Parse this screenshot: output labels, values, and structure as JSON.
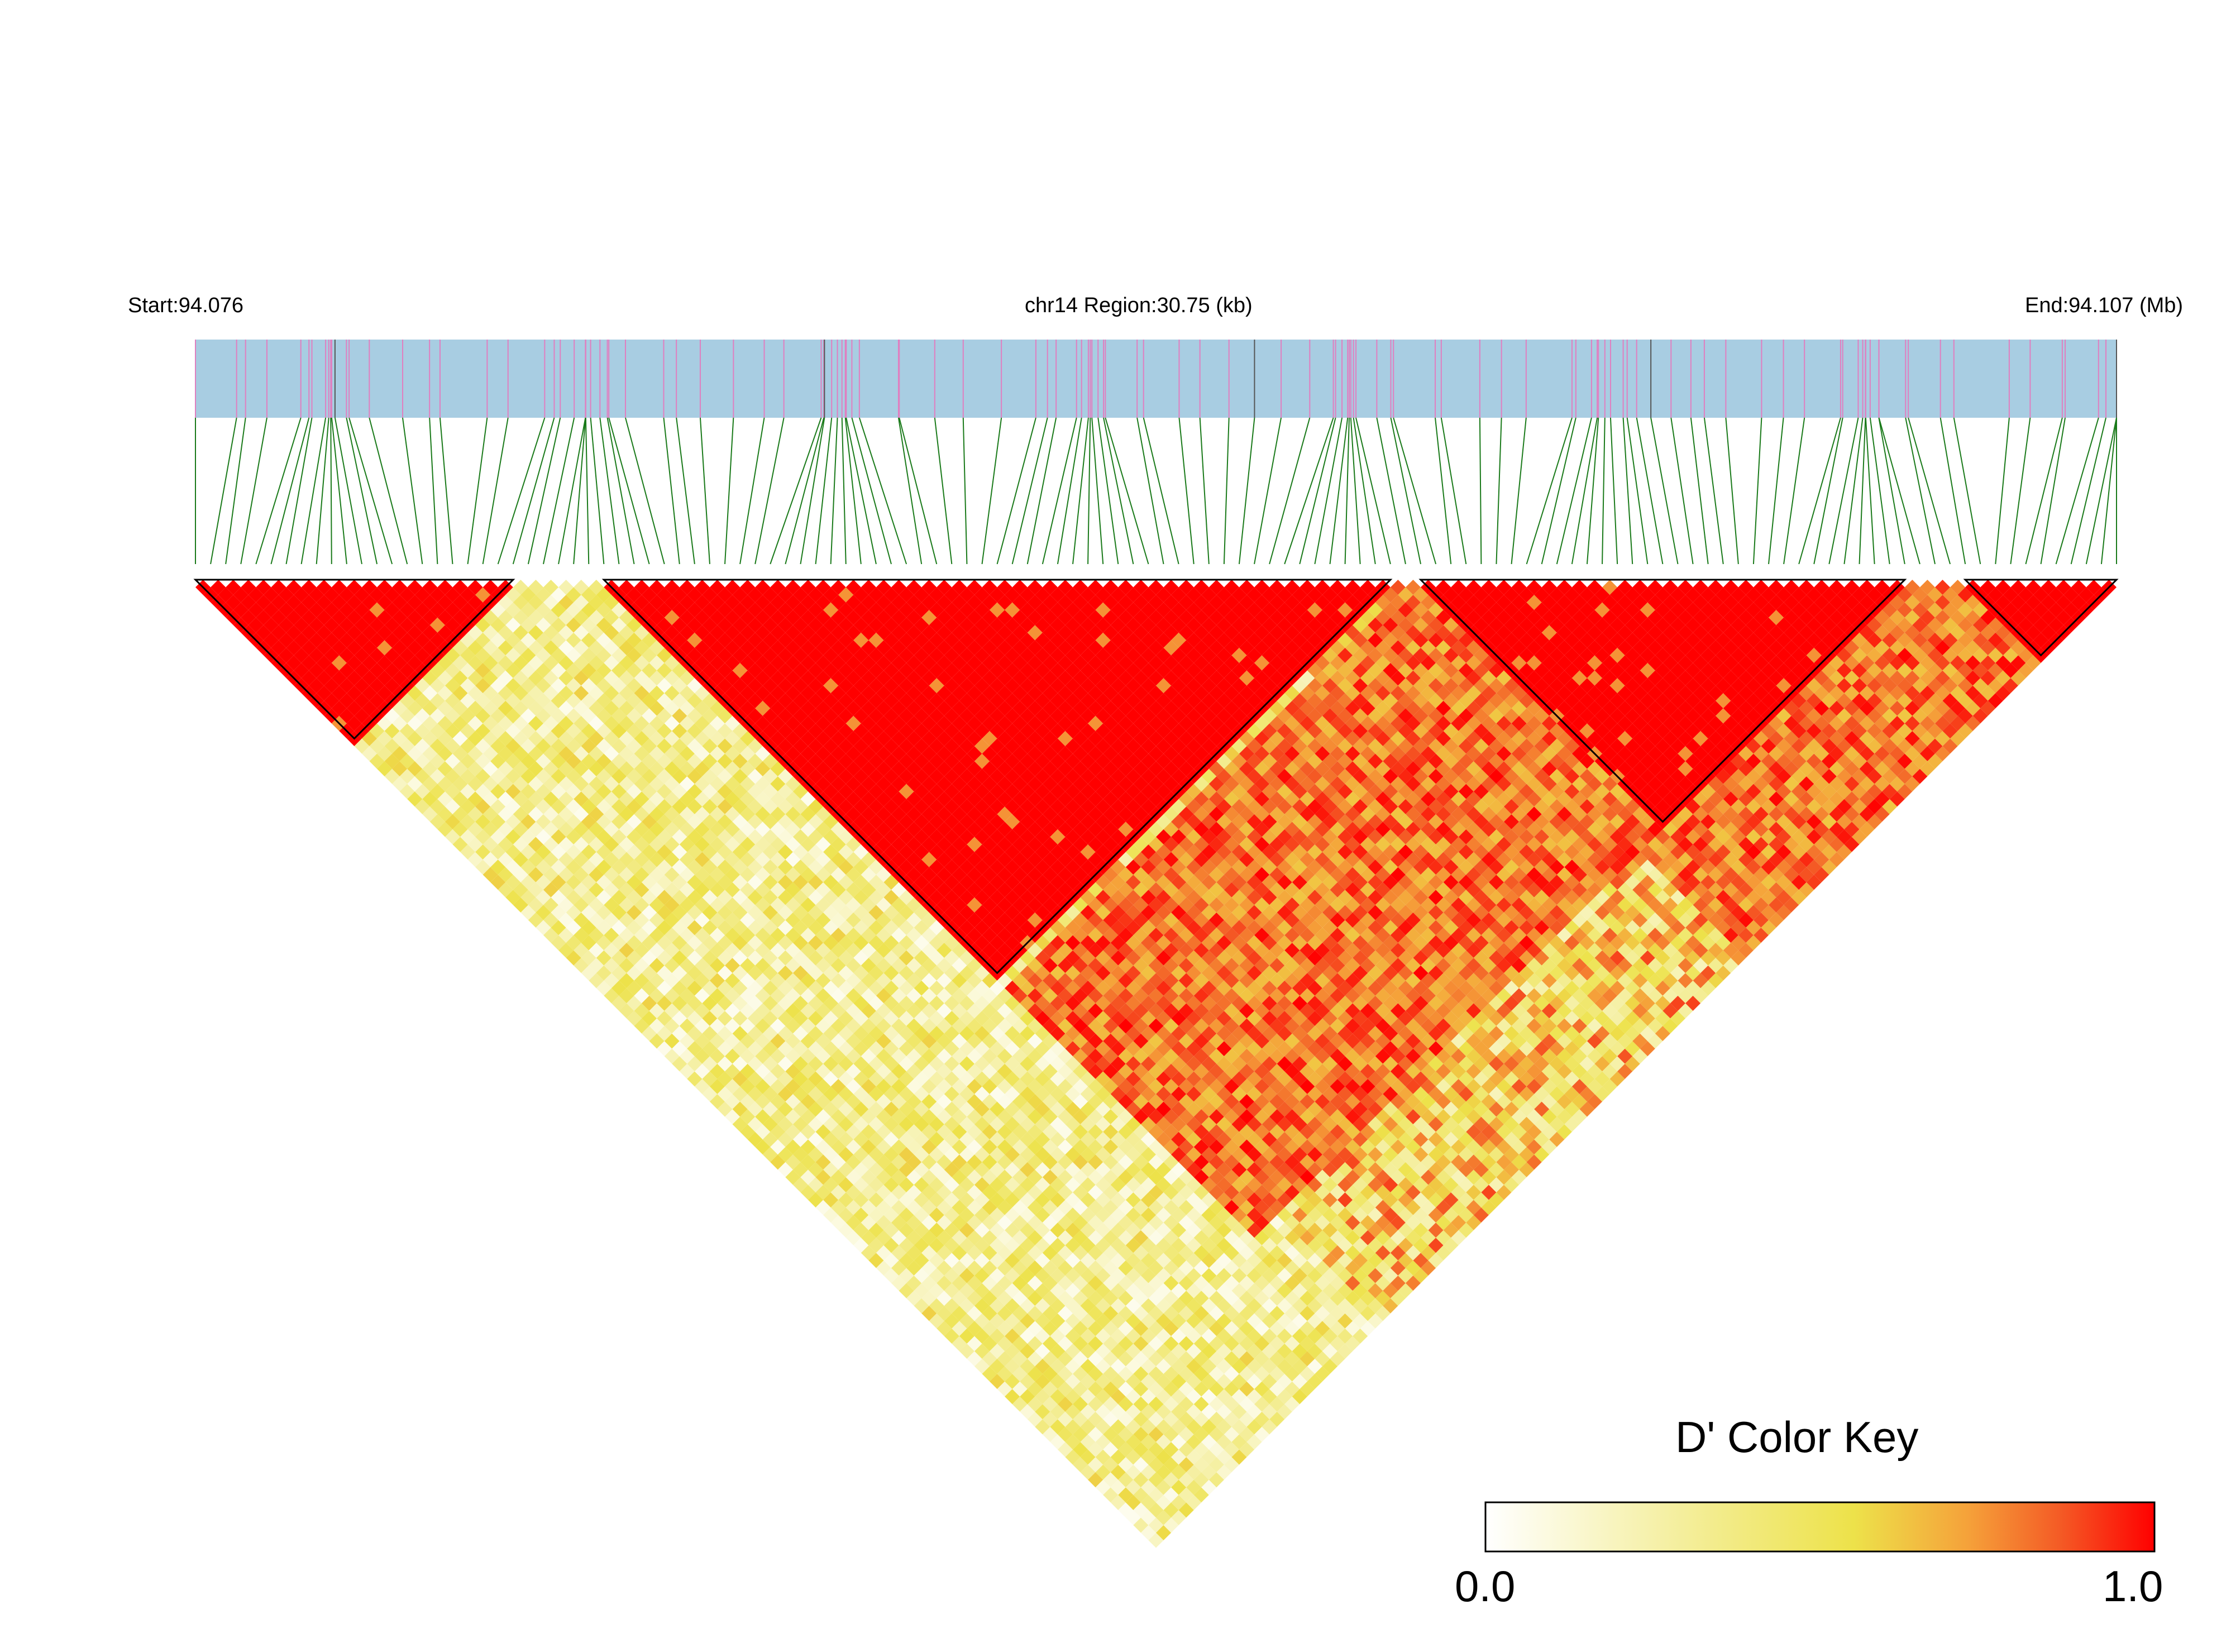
{
  "header": {
    "start_label": "Start:94.076",
    "region_label": "chr14 Region:30.75 (kb)",
    "end_label": "End:94.107 (Mb)"
  },
  "color_key": {
    "title": "D' Color Key",
    "min_label": "0.0",
    "max_label": "1.0"
  },
  "colors": {
    "snp_bar_fill": "#a8cde2",
    "snp_tick": "#e07fc0",
    "snp_tick_dark": "#555555",
    "connector": "#1a7a1a",
    "high_ld": "#ff0000",
    "low_ld": "#ffffff"
  },
  "ld_map": {
    "snp_count": 128,
    "blocks": [
      {
        "start": 0,
        "end": 21
      },
      {
        "start": 27,
        "end": 79
      },
      {
        "start": 81,
        "end": 113
      },
      {
        "start": 117,
        "end": 127
      }
    ]
  }
}
